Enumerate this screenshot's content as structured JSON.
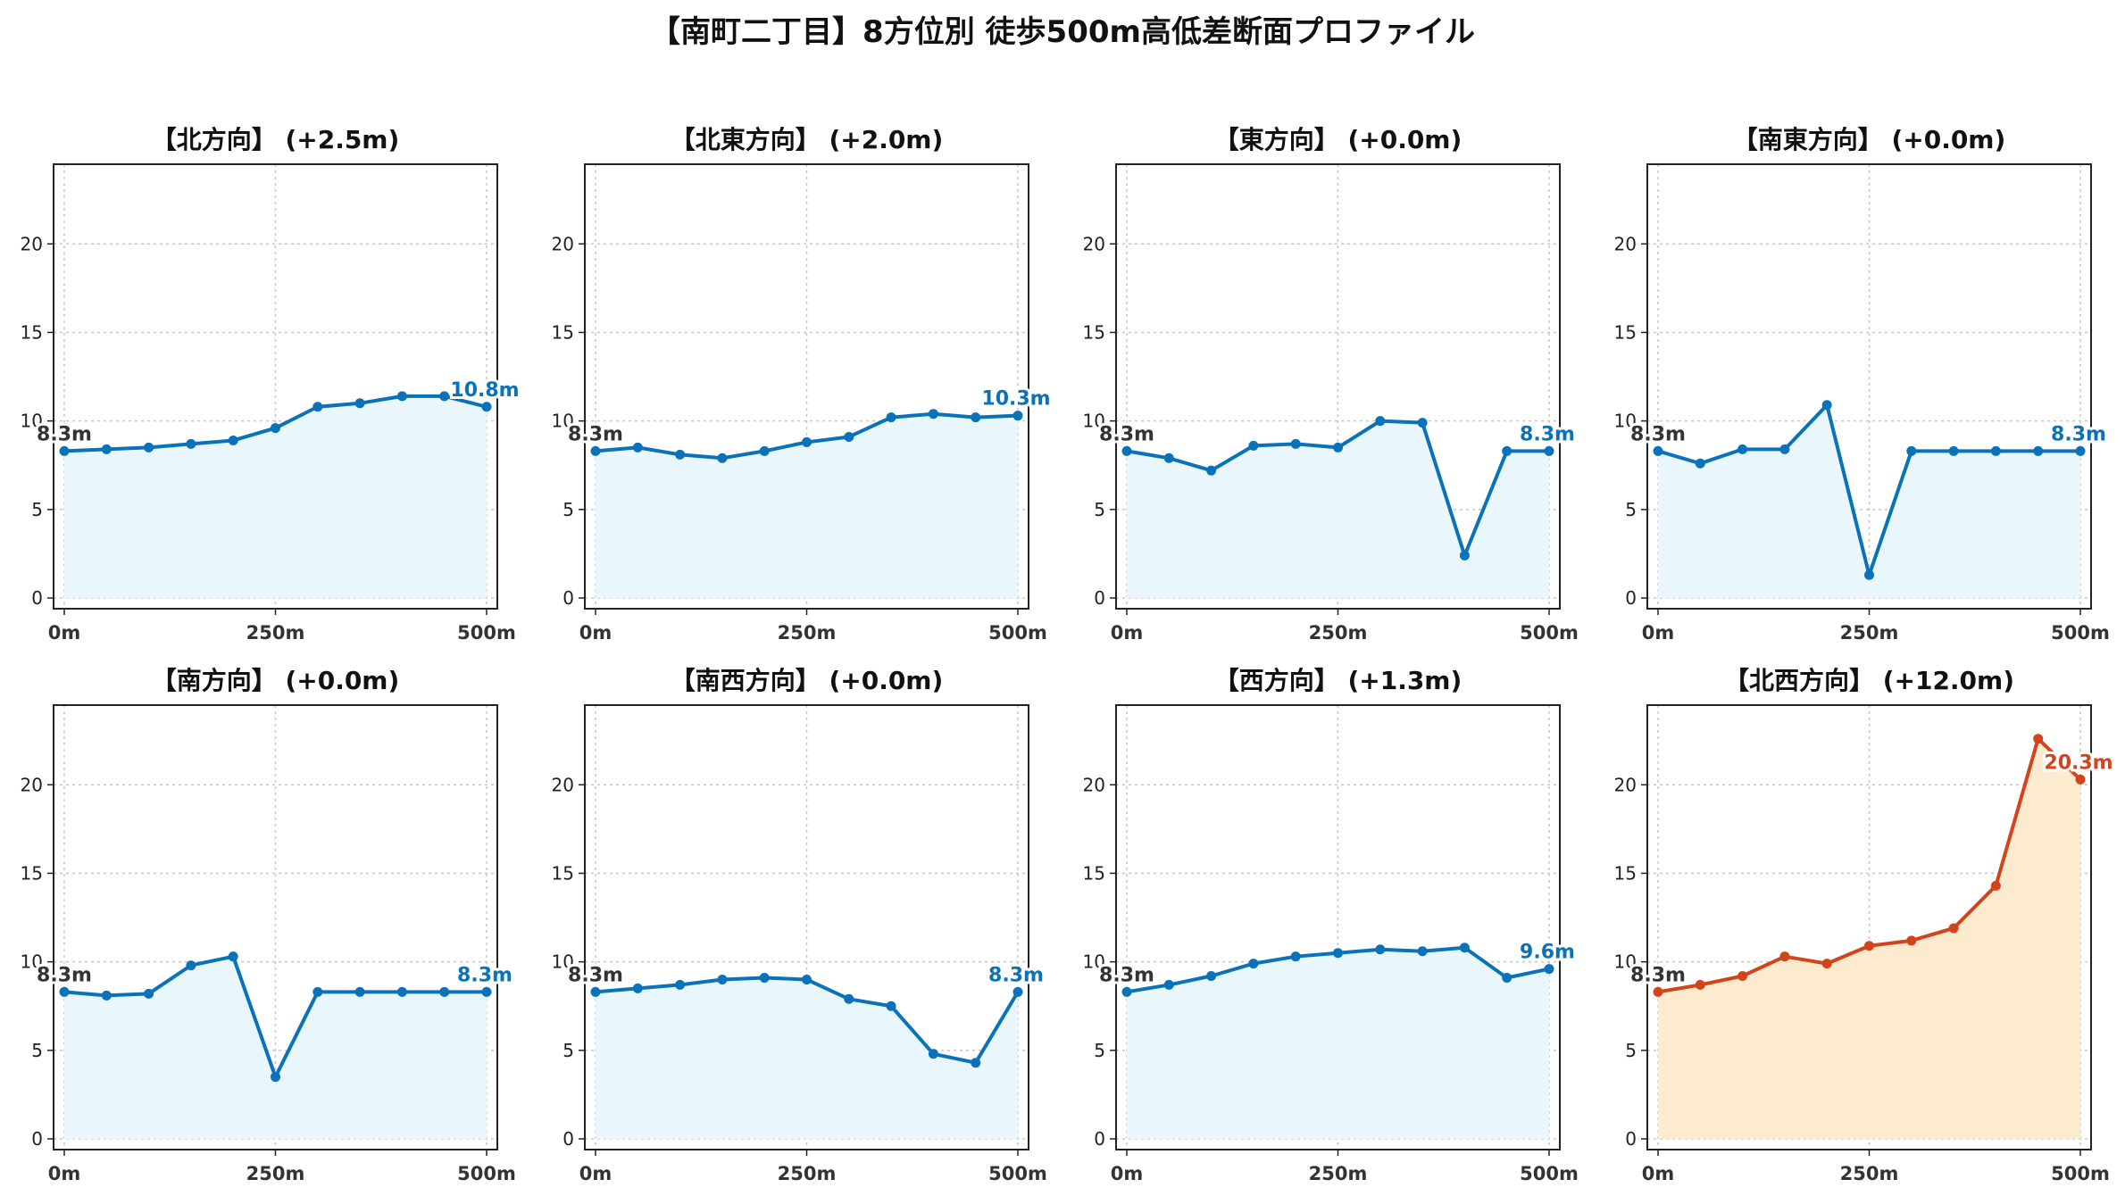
{
  "figure": {
    "title": "【南町二丁目】8方位別 徒歩500m高低差断面プロファイル"
  },
  "colors": {
    "normal_line": "#0a72b8",
    "normal_fill": "#e9f6fc",
    "highlight_line": "#d4441a",
    "highlight_fill": "#fdebd0",
    "grid": "#c8c8c8"
  },
  "chart_data": [
    {
      "type": "area",
      "title": "【北方向】 (+2.5m)",
      "xlabel": "",
      "ylabel": "",
      "xticks": [
        "0m",
        "250m",
        "500m"
      ],
      "yticks": [
        0,
        5,
        10,
        15,
        20
      ],
      "xlim": [
        0,
        500
      ],
      "ylim": [
        0,
        24.5
      ],
      "grid": true,
      "highlight": false,
      "x": [
        0,
        50,
        100,
        150,
        200,
        250,
        300,
        350,
        400,
        450,
        500
      ],
      "y": [
        8.3,
        8.4,
        8.5,
        8.7,
        8.9,
        9.6,
        10.8,
        11.0,
        11.4,
        11.4,
        10.8
      ],
      "start_label": "8.3m",
      "end_label": "10.8m"
    },
    {
      "type": "area",
      "title": "【北東方向】 (+2.0m)",
      "xlabel": "",
      "ylabel": "",
      "xticks": [
        "0m",
        "250m",
        "500m"
      ],
      "yticks": [
        0,
        5,
        10,
        15,
        20
      ],
      "xlim": [
        0,
        500
      ],
      "ylim": [
        0,
        24.5
      ],
      "grid": true,
      "highlight": false,
      "x": [
        0,
        50,
        100,
        150,
        200,
        250,
        300,
        350,
        400,
        450,
        500
      ],
      "y": [
        8.3,
        8.5,
        8.1,
        7.9,
        8.3,
        8.8,
        9.1,
        10.2,
        10.4,
        10.2,
        10.3
      ],
      "start_label": "8.3m",
      "end_label": "10.3m"
    },
    {
      "type": "area",
      "title": "【東方向】 (+0.0m)",
      "xlabel": "",
      "ylabel": "",
      "xticks": [
        "0m",
        "250m",
        "500m"
      ],
      "yticks": [
        0,
        5,
        10,
        15,
        20
      ],
      "xlim": [
        0,
        500
      ],
      "ylim": [
        0,
        24.5
      ],
      "grid": true,
      "highlight": false,
      "x": [
        0,
        50,
        100,
        150,
        200,
        250,
        300,
        350,
        400,
        450,
        500
      ],
      "y": [
        8.3,
        7.9,
        7.2,
        8.6,
        8.7,
        8.5,
        10.0,
        9.9,
        2.4,
        8.3,
        8.3
      ],
      "start_label": "8.3m",
      "end_label": "8.3m"
    },
    {
      "type": "area",
      "title": "【南東方向】 (+0.0m)",
      "xlabel": "",
      "ylabel": "",
      "xticks": [
        "0m",
        "250m",
        "500m"
      ],
      "yticks": [
        0,
        5,
        10,
        15,
        20
      ],
      "xlim": [
        0,
        500
      ],
      "ylim": [
        0,
        24.5
      ],
      "grid": true,
      "highlight": false,
      "x": [
        0,
        50,
        100,
        150,
        200,
        250,
        300,
        350,
        400,
        450,
        500
      ],
      "y": [
        8.3,
        7.6,
        8.4,
        8.4,
        10.9,
        1.3,
        8.3,
        8.3,
        8.3,
        8.3,
        8.3
      ],
      "start_label": "8.3m",
      "end_label": "8.3m"
    },
    {
      "type": "area",
      "title": "【南方向】 (+0.0m)",
      "xlabel": "",
      "ylabel": "",
      "xticks": [
        "0m",
        "250m",
        "500m"
      ],
      "yticks": [
        0,
        5,
        10,
        15,
        20
      ],
      "xlim": [
        0,
        500
      ],
      "ylim": [
        0,
        24.5
      ],
      "grid": true,
      "highlight": false,
      "x": [
        0,
        50,
        100,
        150,
        200,
        250,
        300,
        350,
        400,
        450,
        500
      ],
      "y": [
        8.3,
        8.1,
        8.2,
        9.8,
        10.3,
        3.5,
        8.3,
        8.3,
        8.3,
        8.3,
        8.3
      ],
      "start_label": "8.3m",
      "end_label": "8.3m"
    },
    {
      "type": "area",
      "title": "【南西方向】 (+0.0m)",
      "xlabel": "",
      "ylabel": "",
      "xticks": [
        "0m",
        "250m",
        "500m"
      ],
      "yticks": [
        0,
        5,
        10,
        15,
        20
      ],
      "xlim": [
        0,
        500
      ],
      "ylim": [
        0,
        24.5
      ],
      "grid": true,
      "highlight": false,
      "x": [
        0,
        50,
        100,
        150,
        200,
        250,
        300,
        350,
        400,
        450,
        500
      ],
      "y": [
        8.3,
        8.5,
        8.7,
        9.0,
        9.1,
        9.0,
        7.9,
        7.5,
        4.8,
        4.3,
        8.3
      ],
      "start_label": "8.3m",
      "end_label": "8.3m"
    },
    {
      "type": "area",
      "title": "【西方向】 (+1.3m)",
      "xlabel": "",
      "ylabel": "",
      "xticks": [
        "0m",
        "250m",
        "500m"
      ],
      "yticks": [
        0,
        5,
        10,
        15,
        20
      ],
      "xlim": [
        0,
        500
      ],
      "ylim": [
        0,
        24.5
      ],
      "grid": true,
      "highlight": false,
      "x": [
        0,
        50,
        100,
        150,
        200,
        250,
        300,
        350,
        400,
        450,
        500
      ],
      "y": [
        8.3,
        8.7,
        9.2,
        9.9,
        10.3,
        10.5,
        10.7,
        10.6,
        10.8,
        9.1,
        9.6
      ],
      "start_label": "8.3m",
      "end_label": "9.6m"
    },
    {
      "type": "area",
      "title": "【北西方向】 (+12.0m)",
      "xlabel": "",
      "ylabel": "",
      "xticks": [
        "0m",
        "250m",
        "500m"
      ],
      "yticks": [
        0,
        5,
        10,
        15,
        20
      ],
      "xlim": [
        0,
        500
      ],
      "ylim": [
        0,
        24.5
      ],
      "grid": true,
      "highlight": true,
      "x": [
        0,
        50,
        100,
        150,
        200,
        250,
        300,
        350,
        400,
        450,
        500
      ],
      "y": [
        8.3,
        8.7,
        9.2,
        10.3,
        9.9,
        10.9,
        11.2,
        11.9,
        14.3,
        22.6,
        20.3
      ],
      "start_label": "8.3m",
      "end_label": "20.3m"
    }
  ]
}
